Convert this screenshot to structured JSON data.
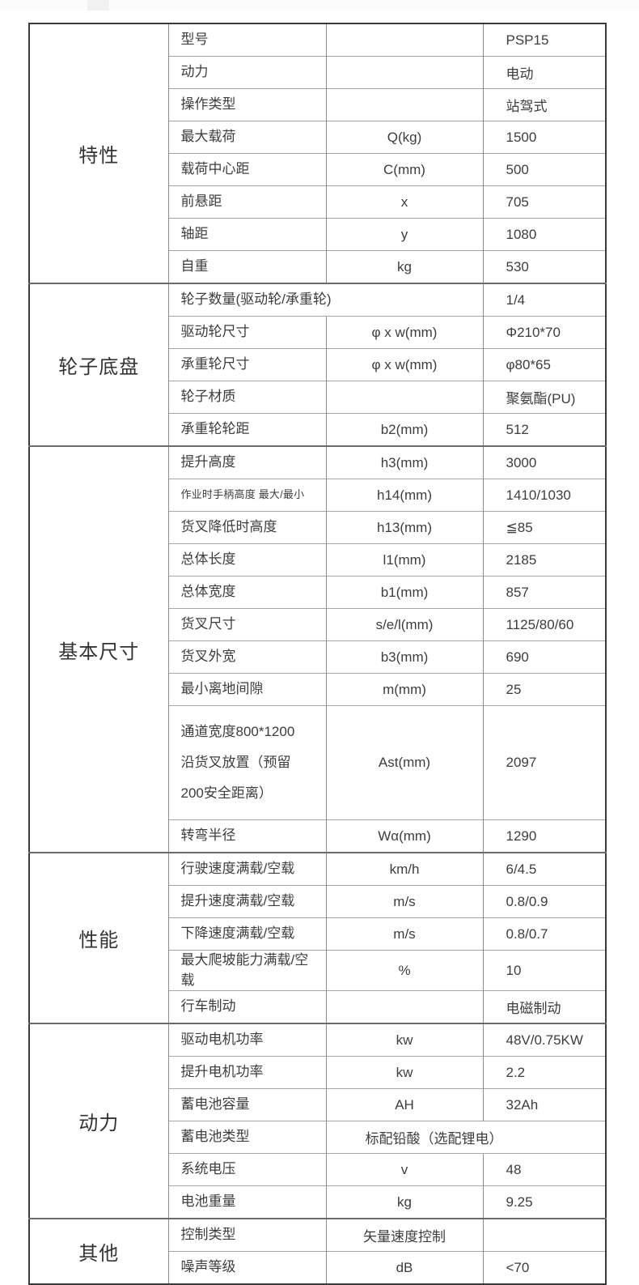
{
  "colors": {
    "outer_border": "#3a3a3a",
    "section_divider": "#6a6a6a",
    "row_divider": "#a6a6a6",
    "column_divider": "#8c8c8c",
    "text": "#3d3d3d",
    "background": "#ffffff"
  },
  "table": {
    "columns": [
      "section",
      "attribute",
      "symbol",
      "value"
    ],
    "sections": [
      {
        "label": "特性",
        "rows": [
          {
            "label": "型号",
            "symbol": "",
            "value": "PSP15"
          },
          {
            "label": "动力",
            "symbol": "",
            "value": "电动"
          },
          {
            "label": "操作类型",
            "symbol": "",
            "value": "站驾式"
          },
          {
            "label": "最大载荷",
            "symbol": "Q(kg)",
            "value": "1500"
          },
          {
            "label": "载荷中心距",
            "symbol": "C(mm)",
            "value": "500"
          },
          {
            "label": "前悬距",
            "symbol": "x",
            "value": "705"
          },
          {
            "label": "轴距",
            "symbol": "y",
            "value": "1080"
          },
          {
            "label": "自重",
            "symbol": "kg",
            "value": "530"
          }
        ]
      },
      {
        "label": "轮子底盘",
        "rows": [
          {
            "label": "轮子数量(驱动轮/承重轮)",
            "symbol": "",
            "value": "1/4",
            "merge": "label-symbol"
          },
          {
            "label": "驱动轮尺寸",
            "symbol": "φ x w(mm)",
            "value": "Φ210*70"
          },
          {
            "label": "承重轮尺寸",
            "symbol": "φ x w(mm)",
            "value": "φ80*65"
          },
          {
            "label": "轮子材质",
            "symbol": "",
            "value": "聚氨酯(PU)"
          },
          {
            "label": "承重轮轮距",
            "symbol": "b2(mm)",
            "value": "512"
          }
        ]
      },
      {
        "label": "基本尺寸",
        "rows": [
          {
            "label": "提升高度",
            "symbol": "h3(mm)",
            "value": "3000"
          },
          {
            "label": "作业时手柄高度  最大/最小",
            "symbol": "h14(mm)",
            "value": "1410/1030",
            "small": true
          },
          {
            "label": "货叉降低时高度",
            "symbol": "h13(mm)",
            "value": "≦85"
          },
          {
            "label": "总体长度",
            "symbol": "l1(mm)",
            "value": "2185"
          },
          {
            "label": "总体宽度",
            "symbol": "b1(mm)",
            "value": "857"
          },
          {
            "label": "货叉尺寸",
            "symbol": "s/e/l(mm)",
            "value": "1125/80/60"
          },
          {
            "label": "货叉外宽",
            "symbol": "b3(mm)",
            "value": "690"
          },
          {
            "label": "最小离地间隙",
            "symbol": "m(mm)",
            "value": "25"
          },
          {
            "label": "通道宽度800*1200\n沿货叉放置（预留\n200安全距离）",
            "symbol": "Ast(mm)",
            "value": "2097",
            "tall": true,
            "wrap": true
          },
          {
            "label": "转弯半径",
            "symbol": "Wα(mm)",
            "value": "1290"
          }
        ]
      },
      {
        "label": "性能",
        "rows": [
          {
            "label": "行驶速度满载/空载",
            "symbol": "km/h",
            "value": "6/4.5"
          },
          {
            "label": "提升速度满载/空载",
            "symbol": "m/s",
            "value": "0.8/0.9"
          },
          {
            "label": "下降速度满载/空载",
            "symbol": "m/s",
            "value": "0.8/0.7"
          },
          {
            "label": "最大爬坡能力满载/空载",
            "symbol": "%",
            "value": "10"
          },
          {
            "label": "行车制动",
            "symbol": "",
            "value": "电磁制动"
          }
        ]
      },
      {
        "label": "动力",
        "rows": [
          {
            "label": "驱动电机功率",
            "symbol": "kw",
            "value": "48V/0.75KW"
          },
          {
            "label": "提升电机功率",
            "symbol": "kw",
            "value": "2.2"
          },
          {
            "label": "蓄电池容量",
            "symbol": "AH",
            "value": "32Ah"
          },
          {
            "label": "蓄电池类型",
            "symbol": "",
            "value": "标配铅酸（选配锂电）",
            "merge": "symbol-value"
          },
          {
            "label": "系统电压",
            "symbol": "v",
            "value": "48"
          },
          {
            "label": "电池重量",
            "symbol": "kg",
            "value": "9.25"
          }
        ]
      },
      {
        "label": "其他",
        "rows": [
          {
            "label": "控制类型",
            "symbol": "矢量速度控制",
            "value": ""
          },
          {
            "label": "噪声等级",
            "symbol": "dB",
            "value": "<70"
          }
        ]
      }
    ]
  }
}
